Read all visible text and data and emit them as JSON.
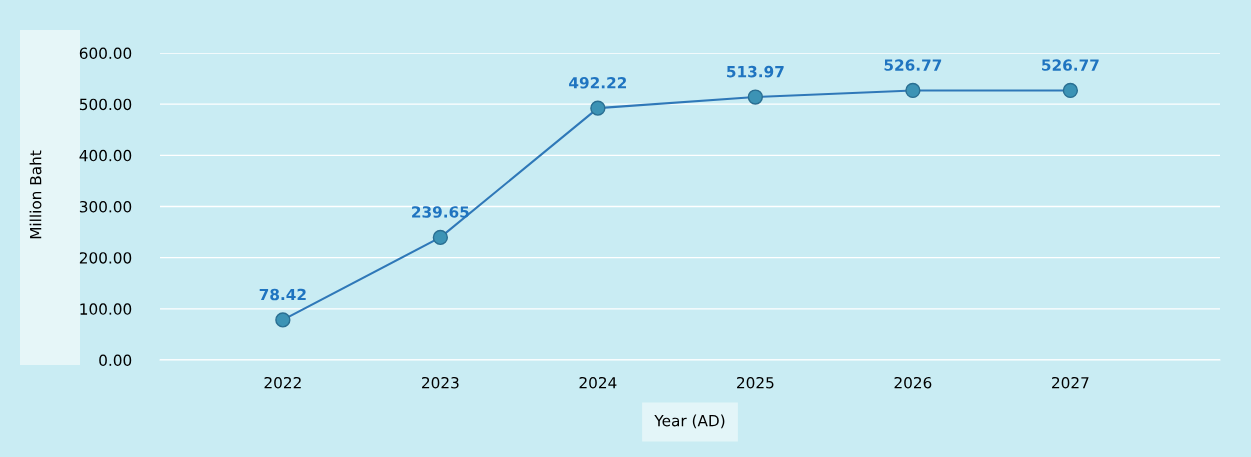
{
  "chart_data": {
    "type": "line",
    "xlabel": "Year (AD)",
    "ylabel": "Million Baht",
    "categories": [
      "2022",
      "2023",
      "2024",
      "2025",
      "2026",
      "2027"
    ],
    "series": [
      {
        "color": "#2f78b8",
        "values": [
          78.42,
          239.65,
          492.22,
          513.97,
          526.77,
          526.77
        ]
      }
    ],
    "ylim": [
      0,
      600
    ],
    "yticks": [
      {
        "value": 0,
        "label": "0.00"
      },
      {
        "value": 100,
        "label": "100.00"
      },
      {
        "value": 200,
        "label": "200.00"
      },
      {
        "value": 300,
        "label": "300.00"
      },
      {
        "value": 400,
        "label": "400.00"
      },
      {
        "value": 500,
        "label": "500.00"
      },
      {
        "value": 600,
        "label": "600.00"
      }
    ],
    "grid": "y",
    "marker": "circle",
    "line_style": "solid",
    "data_labels": true
  }
}
